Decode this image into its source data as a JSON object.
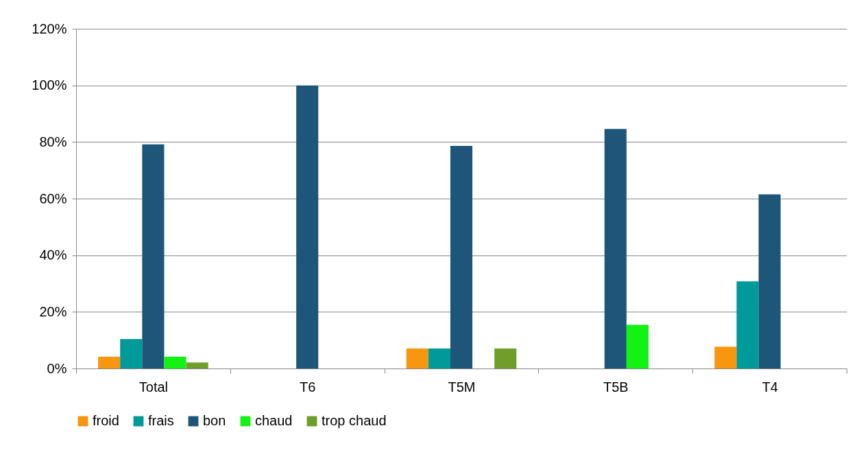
{
  "chart_data": {
    "type": "bar",
    "categories": [
      "Total",
      "T6",
      "T5M",
      "T5B",
      "T4"
    ],
    "series": [
      {
        "name": "froid",
        "color": "#f7960f",
        "values": [
          4.2,
          0,
          7.1,
          0,
          7.7
        ]
      },
      {
        "name": "frais",
        "color": "#009a9a",
        "values": [
          10.4,
          0,
          7.1,
          0,
          30.8
        ]
      },
      {
        "name": "bon",
        "color": "#1d5679",
        "values": [
          79.2,
          100,
          78.6,
          84.6,
          61.5
        ]
      },
      {
        "name": "chaud",
        "color": "#14f214",
        "values": [
          4.2,
          0,
          0,
          15.4,
          0
        ]
      },
      {
        "name": "trop chaud",
        "color": "#6f9f2a",
        "values": [
          2.1,
          0,
          7.1,
          0,
          0
        ]
      }
    ],
    "ylim": [
      0,
      120
    ],
    "yticks": [
      {
        "value": 0,
        "label": "0%"
      },
      {
        "value": 20,
        "label": "20%"
      },
      {
        "value": 40,
        "label": "40%"
      },
      {
        "value": 60,
        "label": "60%"
      },
      {
        "value": 80,
        "label": "80%"
      },
      {
        "value": 100,
        "label": "100%"
      },
      {
        "value": 120,
        "label": "120%"
      }
    ],
    "grid": "y",
    "legend": "bottom"
  }
}
